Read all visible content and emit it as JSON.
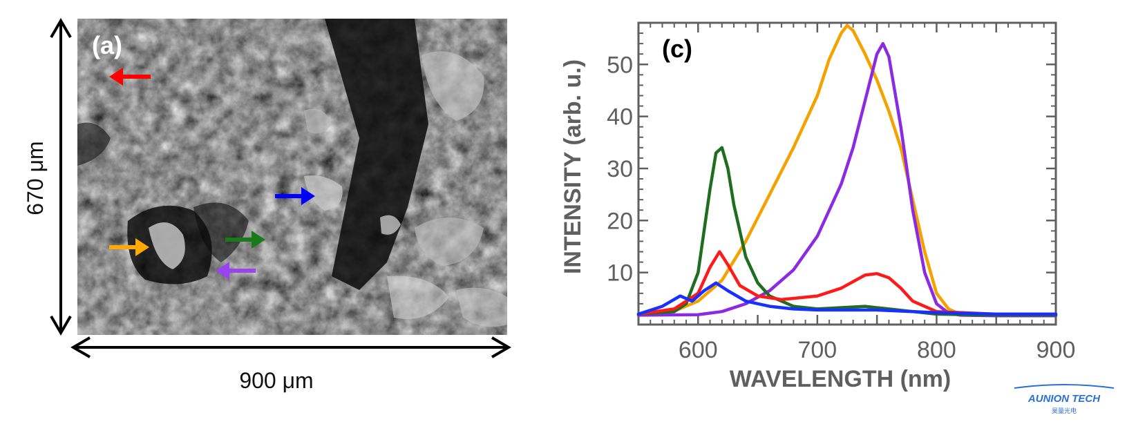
{
  "panel_a": {
    "label": "(a)",
    "width_label": "900 μm",
    "height_label": "670 μm",
    "arrow_colors": [
      "#ff0000",
      "#0000ff",
      "#1a7a1a",
      "#ffaa00",
      "#9944ee"
    ]
  },
  "watermark": {
    "line1": "AUNION TECH",
    "line2": "昊量光电"
  },
  "chart_data": {
    "type": "line",
    "panel_label": "(c)",
    "xlabel": "WAVELENGTH (nm)",
    "ylabel": "INTENSITY (arb. u.)",
    "xlim": [
      550,
      900
    ],
    "ylim": [
      0,
      58
    ],
    "xticks": [
      600,
      700,
      800,
      900
    ],
    "yticks": [
      10,
      20,
      30,
      40,
      50
    ],
    "grid": false,
    "legend": "none",
    "series": [
      {
        "color": "#f5a200",
        "x": [
          550,
          580,
          600,
          620,
          640,
          660,
          680,
          700,
          710,
          720,
          725,
          730,
          740,
          750,
          760,
          770,
          780,
          790,
          800,
          810,
          820,
          850,
          900
        ],
        "y": [
          2.0,
          2.6,
          4.5,
          8.5,
          16.0,
          25.0,
          34.0,
          44.0,
          51.0,
          56.0,
          57.5,
          56.5,
          52.0,
          47.0,
          41.0,
          34.0,
          24.0,
          14.0,
          6.0,
          3.0,
          2.0,
          1.8,
          1.8
        ]
      },
      {
        "color": "#8a2be2",
        "x": [
          550,
          600,
          620,
          640,
          660,
          680,
          700,
          720,
          730,
          740,
          750,
          755,
          760,
          770,
          780,
          790,
          800,
          810,
          820,
          850,
          900
        ],
        "y": [
          1.8,
          1.9,
          2.5,
          4.0,
          6.5,
          10.5,
          17.0,
          27.0,
          34.0,
          43.0,
          52.0,
          54.0,
          51.5,
          38.0,
          22.0,
          10.0,
          4.0,
          2.2,
          1.8,
          1.7,
          1.7
        ]
      },
      {
        "color": "#1f6e1f",
        "x": [
          550,
          580,
          590,
          600,
          610,
          615,
          620,
          625,
          630,
          640,
          650,
          660,
          680,
          700,
          740,
          760,
          780,
          800,
          850,
          900
        ],
        "y": [
          2.0,
          2.5,
          4.0,
          10.0,
          26.0,
          33.0,
          34.0,
          30.0,
          23.0,
          13.0,
          8.0,
          5.5,
          3.5,
          3.0,
          3.5,
          3.0,
          2.5,
          2.0,
          1.8,
          1.8
        ]
      },
      {
        "color": "#ff1a1a",
        "x": [
          550,
          580,
          600,
          610,
          618,
          625,
          635,
          650,
          670,
          700,
          720,
          740,
          750,
          760,
          770,
          780,
          800,
          850,
          900
        ],
        "y": [
          2.0,
          3.0,
          6.0,
          11.0,
          14.0,
          11.5,
          7.5,
          5.5,
          4.8,
          5.5,
          7.0,
          9.5,
          9.8,
          9.0,
          7.0,
          4.5,
          2.5,
          2.0,
          2.0
        ]
      },
      {
        "color": "#1530ff",
        "x": [
          550,
          570,
          585,
          595,
          605,
          615,
          625,
          640,
          660,
          680,
          700,
          750,
          800,
          850,
          900
        ],
        "y": [
          2.0,
          3.5,
          5.5,
          4.5,
          6.5,
          8.0,
          6.5,
          4.5,
          3.5,
          3.0,
          2.8,
          2.8,
          2.3,
          2.0,
          2.0
        ]
      }
    ]
  }
}
